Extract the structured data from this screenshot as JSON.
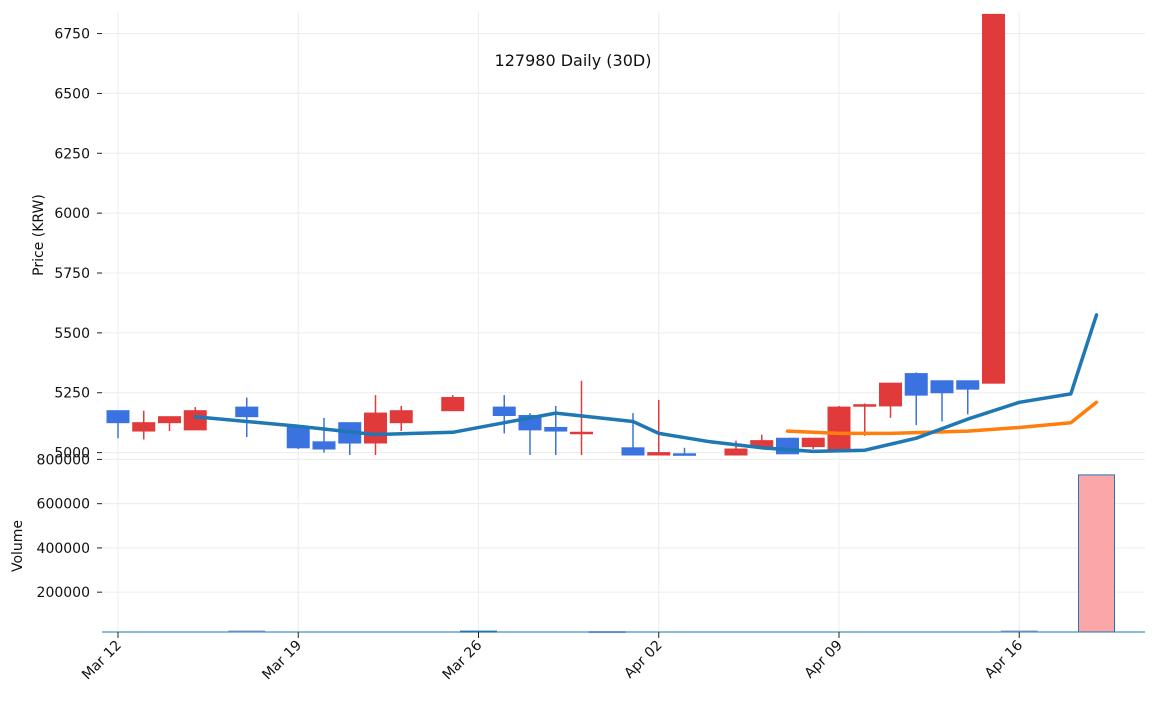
{
  "chart_data": {
    "type": "candlestick",
    "title": "127980 Daily (30D)",
    "price_panel": {
      "ylabel": "Price (KRW)",
      "ylim": [
        4990,
        6840
      ],
      "yticks": [
        5000,
        5250,
        5500,
        5750,
        6000,
        6250,
        6500,
        6750
      ],
      "ytick_labels": [
        "5000",
        "5250",
        "5500",
        "5750",
        "6000",
        "6250",
        "6500",
        "6750"
      ]
    },
    "volume_panel": {
      "ylabel": "Volume",
      "ylim": [
        20000,
        820000
      ],
      "yticks": [
        200000,
        400000,
        600000,
        800000
      ],
      "ytick_labels": [
        "200000",
        "400000",
        "600000",
        "800000"
      ]
    },
    "xaxis": {
      "tick_labels": [
        "Mar 12",
        "Mar 19",
        "Mar 26",
        "Apr 02",
        "Apr 09",
        "Apr 16"
      ],
      "tick_days": [
        0,
        7,
        14,
        21,
        28,
        35
      ]
    },
    "colors": {
      "up": "#e03a3a",
      "down": "#3a72e0",
      "ma_short": "#1f77b4",
      "ma_long": "#ff7f0e",
      "volume_up": "#fba7a7"
    },
    "candles": [
      {
        "d": 0,
        "o": 5175,
        "h": 5175,
        "l": 5060,
        "c": 5125
      },
      {
        "d": 1,
        "o": 5090,
        "h": 5175,
        "l": 5055,
        "c": 5125
      },
      {
        "d": 2,
        "o": 5125,
        "h": 5150,
        "l": 5090,
        "c": 5150
      },
      {
        "d": 3,
        "o": 5095,
        "h": 5190,
        "l": 5095,
        "c": 5175
      },
      {
        "d": 5,
        "o": 5190,
        "h": 5230,
        "l": 5065,
        "c": 5150
      },
      {
        "d": 7,
        "o": 5105,
        "h": 5105,
        "l": 5015,
        "c": 5020
      },
      {
        "d": 8,
        "o": 5045,
        "h": 5145,
        "l": 5000,
        "c": 5015
      },
      {
        "d": 9,
        "o": 5125,
        "h": 5125,
        "l": 4985,
        "c": 5040
      },
      {
        "d": 10,
        "o": 5040,
        "h": 5240,
        "l": 4945,
        "c": 5165
      },
      {
        "d": 11,
        "o": 5125,
        "h": 5195,
        "l": 5090,
        "c": 5175
      },
      {
        "d": 13,
        "o": 5175,
        "h": 5240,
        "l": 5175,
        "c": 5230
      },
      {
        "d": 15,
        "o": 5190,
        "h": 5240,
        "l": 5080,
        "c": 5155
      },
      {
        "d": 16,
        "o": 5155,
        "h": 5165,
        "l": 4910,
        "c": 5095
      },
      {
        "d": 17,
        "o": 5105,
        "h": 5195,
        "l": 4955,
        "c": 5090
      },
      {
        "d": 18,
        "o": 5085,
        "h": 5300,
        "l": 4990,
        "c": 5085
      },
      {
        "d": 20,
        "o": 5020,
        "h": 5165,
        "l": 4975,
        "c": 4980
      },
      {
        "d": 21,
        "o": 4990,
        "h": 5220,
        "l": 4960,
        "c": 5000
      },
      {
        "d": 22,
        "o": 4995,
        "h": 5020,
        "l": 4965,
        "c": 4980
      },
      {
        "d": 24,
        "o": 4990,
        "h": 5050,
        "l": 4985,
        "c": 5015
      },
      {
        "d": 25,
        "o": 5025,
        "h": 5075,
        "l": 5025,
        "c": 5050
      },
      {
        "d": 26,
        "o": 5060,
        "h": 5060,
        "l": 4995,
        "c": 4995
      },
      {
        "d": 27,
        "o": 5025,
        "h": 5060,
        "l": 5015,
        "c": 5060
      },
      {
        "d": 28,
        "o": 5015,
        "h": 5195,
        "l": 5015,
        "c": 5190
      },
      {
        "d": 29,
        "o": 5200,
        "h": 5205,
        "l": 5070,
        "c": 5200
      },
      {
        "d": 30,
        "o": 5195,
        "h": 5290,
        "l": 5145,
        "c": 5290
      },
      {
        "d": 31,
        "o": 5330,
        "h": 5335,
        "l": 5115,
        "c": 5240
      },
      {
        "d": 32,
        "o": 5300,
        "h": 5300,
        "l": 5130,
        "c": 5250
      },
      {
        "d": 33,
        "o": 5300,
        "h": 5300,
        "l": 5160,
        "c": 5265
      },
      {
        "d": 34,
        "o": 5290,
        "h": 6830,
        "l": 5290,
        "c": 6830
      }
    ],
    "ma_short": [
      [
        3,
        5150
      ],
      [
        7,
        5110
      ],
      [
        10,
        5075
      ],
      [
        13,
        5085
      ],
      [
        15,
        5125
      ],
      [
        17,
        5165
      ],
      [
        20,
        5130
      ],
      [
        21,
        5080
      ],
      [
        23,
        5045
      ],
      [
        25,
        5020
      ],
      [
        27,
        5005
      ],
      [
        29,
        5010
      ],
      [
        31,
        5060
      ],
      [
        33,
        5140
      ],
      [
        35,
        5210
      ],
      [
        37,
        5245
      ],
      [
        38,
        5575
      ]
    ],
    "ma_long": [
      [
        26,
        5090
      ],
      [
        28,
        5080
      ],
      [
        29,
        5080
      ],
      [
        30,
        5080
      ],
      [
        33,
        5090
      ],
      [
        35,
        5105
      ],
      [
        37,
        5125
      ],
      [
        38,
        5210
      ]
    ],
    "volume": [
      {
        "d": 5,
        "v": 24000,
        "up": false
      },
      {
        "d": 14,
        "v": 24000,
        "up": true
      },
      {
        "d": 19,
        "v": 22000,
        "up": false
      },
      {
        "d": 35,
        "v": 24000,
        "up": false
      },
      {
        "d": 38,
        "v": 730000,
        "up": true
      }
    ]
  }
}
